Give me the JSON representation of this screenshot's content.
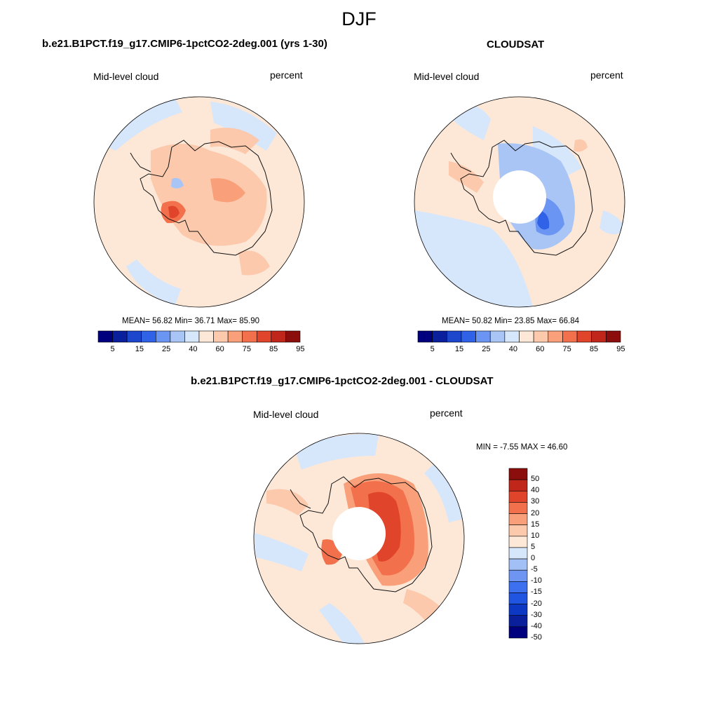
{
  "figure": {
    "season_title": "DJF",
    "panels": [
      {
        "title": "b.e21.B1PCT.f19_g17.CMIP6-1pctCO2-2deg.001 (yrs 1-30)",
        "variable": "Mid-level cloud",
        "units": "percent",
        "stats": {
          "mean_label": "MEAN=",
          "mean": "56.82",
          "min_label": "Min=",
          "min": "36.71",
          "max_label": "Max=",
          "max": "85.90"
        }
      },
      {
        "title": "CLOUDSAT",
        "variable": "Mid-level cloud",
        "units": "percent",
        "stats": {
          "mean_label": "MEAN=",
          "mean": "50.82",
          "min_label": "Min=",
          "min": "23.85",
          "max_label": "Max=",
          "max": "66.84"
        }
      },
      {
        "title": "b.e21.B1PCT.f19_g17.CMIP6-1pctCO2-2deg.001 - CLOUDSAT",
        "variable": "Mid-level cloud",
        "units": "percent",
        "minmax": "MIN =  -7.55 MAX =  46.60"
      }
    ],
    "abs_colorbar": {
      "colors": [
        "#00007f",
        "#0a1f9c",
        "#1c46cc",
        "#2f62e6",
        "#6b95f2",
        "#a9c5f5",
        "#d6e6fb",
        "#fde8d8",
        "#fcc9ad",
        "#f9a07a",
        "#f2704b",
        "#e0442a",
        "#c0271a",
        "#8c0e0c"
      ],
      "tick_labels": [
        "5",
        "15",
        "25",
        "40",
        "60",
        "75",
        "85",
        "95"
      ]
    },
    "diff_colorbar": {
      "colors": [
        "#00007f",
        "#0a1f9c",
        "#0d38c4",
        "#1f55e0",
        "#3c70ee",
        "#6f95f2",
        "#a2c0f5",
        "#d6e6fb",
        "#fde8d8",
        "#fcc9ad",
        "#f9a07a",
        "#f2704b",
        "#e0442a",
        "#c0271a",
        "#8c0e0c"
      ],
      "tick_labels": [
        "50",
        "40",
        "30",
        "20",
        "15",
        "10",
        "5",
        "0",
        "-5",
        "-10",
        "-15",
        "-20",
        "-30",
        "-40",
        "-50"
      ]
    },
    "colors": {
      "ocean_light_orange": "#fde8d8",
      "orange": "#fcc9ad",
      "mid_orange": "#f9a07a",
      "dark_orange": "#f2704b",
      "red": "#e0442a",
      "light_blue": "#d6e6fb",
      "blue": "#a2c0f5",
      "mid_blue": "#6b95f2",
      "dark_blue": "#2f62e6",
      "coast": "#111111"
    }
  }
}
